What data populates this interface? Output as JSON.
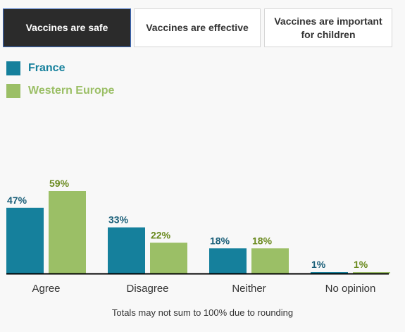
{
  "tabs": [
    {
      "label": "Vaccines are safe",
      "active": true
    },
    {
      "label": "Vaccines are effective",
      "active": false
    },
    {
      "label_line1": "Vaccines are important",
      "label_line2": "for children",
      "active": false
    }
  ],
  "colors": {
    "france": "#15809c",
    "western_europe": "#9bbf66",
    "france_label": "#1a5f79",
    "western_europe_label": "#6a8a1e"
  },
  "footnote": "Totals may not sum to 100% due to rounding",
  "chart_data": {
    "type": "bar",
    "categories": [
      "Agree",
      "Disagree",
      "Neither",
      "No opinion"
    ],
    "series": [
      {
        "name": "France",
        "values": [
          47,
          33,
          18,
          1
        ],
        "labels": [
          "47%",
          "33%",
          "18%",
          "1%"
        ]
      },
      {
        "name": "Western Europe",
        "values": [
          59,
          22,
          18,
          1
        ],
        "labels": [
          "59%",
          "22%",
          "18%",
          "1%"
        ]
      }
    ],
    "unit": "%",
    "ylim": [
      0,
      59
    ],
    "grid": false,
    "legend": "top-left"
  }
}
